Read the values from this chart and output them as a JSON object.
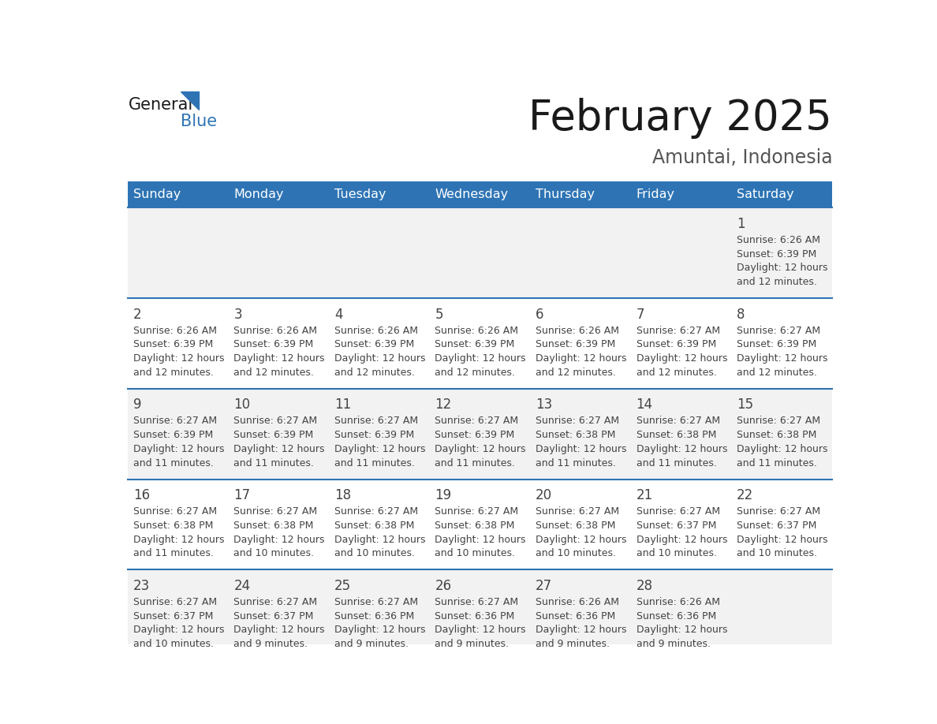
{
  "title": "February 2025",
  "subtitle": "Amuntai, Indonesia",
  "days_of_week": [
    "Sunday",
    "Monday",
    "Tuesday",
    "Wednesday",
    "Thursday",
    "Friday",
    "Saturday"
  ],
  "header_bg": "#2E74B5",
  "header_text_color": "#FFFFFF",
  "cell_bg_row0": "#F2F2F2",
  "cell_bg_row1": "#FFFFFF",
  "cell_bg_row2": "#F2F2F2",
  "cell_bg_row3": "#FFFFFF",
  "cell_bg_row4": "#F2F2F2",
  "cell_text_color": "#444444",
  "separator_color": "#2E74B5",
  "title_color": "#1A1A1A",
  "subtitle_color": "#555555",
  "logo_general_color": "#1A1A1A",
  "logo_blue_color": "#2E74B5",
  "calendar_data": [
    [
      null,
      null,
      null,
      null,
      null,
      null,
      {
        "day": 1,
        "sunrise": "6:26 AM",
        "sunset": "6:39 PM",
        "daylight": "12 hours and 12 minutes."
      }
    ],
    [
      {
        "day": 2,
        "sunrise": "6:26 AM",
        "sunset": "6:39 PM",
        "daylight": "12 hours and 12 minutes."
      },
      {
        "day": 3,
        "sunrise": "6:26 AM",
        "sunset": "6:39 PM",
        "daylight": "12 hours and 12 minutes."
      },
      {
        "day": 4,
        "sunrise": "6:26 AM",
        "sunset": "6:39 PM",
        "daylight": "12 hours and 12 minutes."
      },
      {
        "day": 5,
        "sunrise": "6:26 AM",
        "sunset": "6:39 PM",
        "daylight": "12 hours and 12 minutes."
      },
      {
        "day": 6,
        "sunrise": "6:26 AM",
        "sunset": "6:39 PM",
        "daylight": "12 hours and 12 minutes."
      },
      {
        "day": 7,
        "sunrise": "6:27 AM",
        "sunset": "6:39 PM",
        "daylight": "12 hours and 12 minutes."
      },
      {
        "day": 8,
        "sunrise": "6:27 AM",
        "sunset": "6:39 PM",
        "daylight": "12 hours and 12 minutes."
      }
    ],
    [
      {
        "day": 9,
        "sunrise": "6:27 AM",
        "sunset": "6:39 PM",
        "daylight": "12 hours and 11 minutes."
      },
      {
        "day": 10,
        "sunrise": "6:27 AM",
        "sunset": "6:39 PM",
        "daylight": "12 hours and 11 minutes."
      },
      {
        "day": 11,
        "sunrise": "6:27 AM",
        "sunset": "6:39 PM",
        "daylight": "12 hours and 11 minutes."
      },
      {
        "day": 12,
        "sunrise": "6:27 AM",
        "sunset": "6:39 PM",
        "daylight": "12 hours and 11 minutes."
      },
      {
        "day": 13,
        "sunrise": "6:27 AM",
        "sunset": "6:38 PM",
        "daylight": "12 hours and 11 minutes."
      },
      {
        "day": 14,
        "sunrise": "6:27 AM",
        "sunset": "6:38 PM",
        "daylight": "12 hours and 11 minutes."
      },
      {
        "day": 15,
        "sunrise": "6:27 AM",
        "sunset": "6:38 PM",
        "daylight": "12 hours and 11 minutes."
      }
    ],
    [
      {
        "day": 16,
        "sunrise": "6:27 AM",
        "sunset": "6:38 PM",
        "daylight": "12 hours and 11 minutes."
      },
      {
        "day": 17,
        "sunrise": "6:27 AM",
        "sunset": "6:38 PM",
        "daylight": "12 hours and 10 minutes."
      },
      {
        "day": 18,
        "sunrise": "6:27 AM",
        "sunset": "6:38 PM",
        "daylight": "12 hours and 10 minutes."
      },
      {
        "day": 19,
        "sunrise": "6:27 AM",
        "sunset": "6:38 PM",
        "daylight": "12 hours and 10 minutes."
      },
      {
        "day": 20,
        "sunrise": "6:27 AM",
        "sunset": "6:38 PM",
        "daylight": "12 hours and 10 minutes."
      },
      {
        "day": 21,
        "sunrise": "6:27 AM",
        "sunset": "6:37 PM",
        "daylight": "12 hours and 10 minutes."
      },
      {
        "day": 22,
        "sunrise": "6:27 AM",
        "sunset": "6:37 PM",
        "daylight": "12 hours and 10 minutes."
      }
    ],
    [
      {
        "day": 23,
        "sunrise": "6:27 AM",
        "sunset": "6:37 PM",
        "daylight": "12 hours and 10 minutes."
      },
      {
        "day": 24,
        "sunrise": "6:27 AM",
        "sunset": "6:37 PM",
        "daylight": "12 hours and 9 minutes."
      },
      {
        "day": 25,
        "sunrise": "6:27 AM",
        "sunset": "6:36 PM",
        "daylight": "12 hours and 9 minutes."
      },
      {
        "day": 26,
        "sunrise": "6:27 AM",
        "sunset": "6:36 PM",
        "daylight": "12 hours and 9 minutes."
      },
      {
        "day": 27,
        "sunrise": "6:26 AM",
        "sunset": "6:36 PM",
        "daylight": "12 hours and 9 minutes."
      },
      {
        "day": 28,
        "sunrise": "6:26 AM",
        "sunset": "6:36 PM",
        "daylight": "12 hours and 9 minutes."
      },
      null
    ]
  ]
}
